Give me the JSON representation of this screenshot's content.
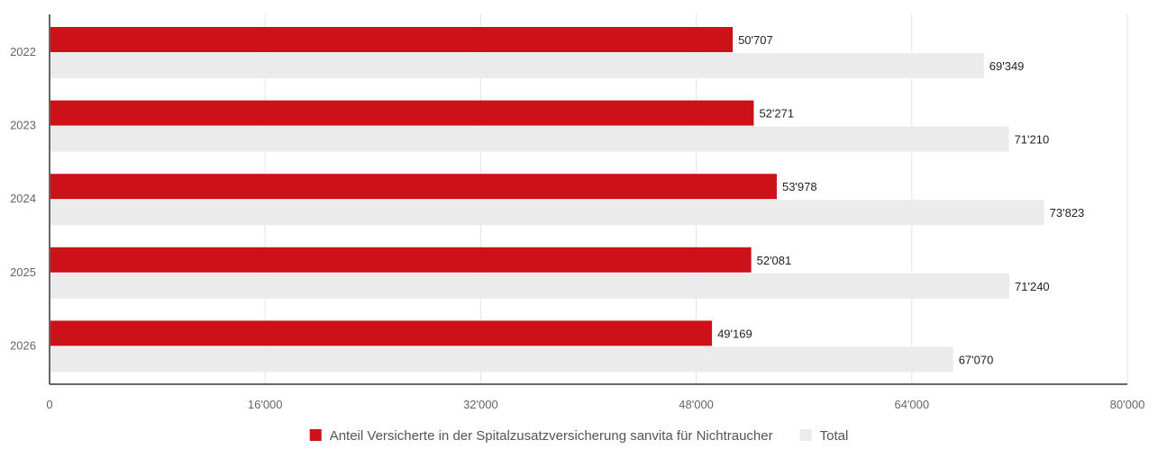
{
  "chart_data": {
    "type": "bar",
    "orientation": "horizontal",
    "categories": [
      "2022",
      "2023",
      "2024",
      "2025",
      "2026"
    ],
    "series": [
      {
        "name": "Anteil Versicherte in der Spitalzusatzversicherung sanvita für Nichtraucher",
        "values": [
          50707,
          52271,
          53978,
          52081,
          49169
        ],
        "labels": [
          "50'707",
          "52'271",
          "53'978",
          "52'081",
          "49'169"
        ],
        "color": "#cc1118"
      },
      {
        "name": "Total",
        "values": [
          69349,
          71210,
          73823,
          71240,
          67070
        ],
        "labels": [
          "69'349",
          "71'210",
          "73'823",
          "71'240",
          "67'070"
        ],
        "color": "#ebebeb"
      }
    ],
    "xlim": [
      0,
      80000
    ],
    "x_ticks": [
      0,
      16000,
      32000,
      48000,
      64000,
      80000
    ],
    "x_tick_labels": [
      "0",
      "16'000",
      "32'000",
      "48'000",
      "64'000",
      "80'000"
    ],
    "grid": true,
    "legend_position": "bottom-center"
  }
}
